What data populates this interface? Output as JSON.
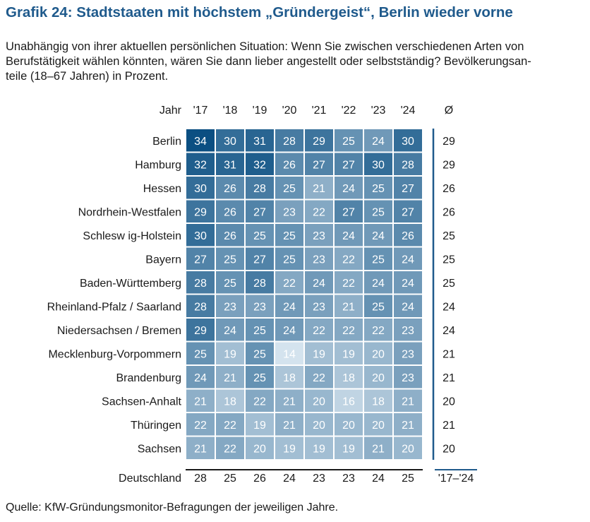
{
  "title": "Grafik 24: Stadtstaaten mit höchstem „Gründergeist“, Berlin wieder vorne",
  "subtitle_lines": [
    "Unabhängig von ihrer aktuellen persönlichen Situation: Wenn Sie zwischen verschiedenen Arten von",
    "Berufstätigkeit wählen könnten, wären Sie dann lieber angestellt oder selbstständig? Bevölkerungsan-",
    "teile (18–67 Jahren) in Prozent."
  ],
  "source": "Quelle: KfW-Gründungsmonitor-Befragungen der jeweiligen Jahre.",
  "colors": {
    "title": "#1f5a8c",
    "cell_high": "#0b4f82",
    "cell_low": "#d4e3ee",
    "divider": "#1f5a8c",
    "grid": "#ffffff"
  },
  "chart_data": {
    "type": "heatmap",
    "row_header": "Jahr",
    "columns": [
      "'17",
      "'18",
      "'19",
      "'20",
      "'21",
      "'22",
      "'23",
      "'24"
    ],
    "avg_header": "Ø",
    "rows": [
      {
        "label": "Berlin",
        "values": [
          34,
          30,
          31,
          28,
          29,
          25,
          24,
          30
        ],
        "avg": 29
      },
      {
        "label": "Hamburg",
        "values": [
          32,
          31,
          32,
          26,
          27,
          27,
          30,
          28
        ],
        "avg": 29
      },
      {
        "label": "Hessen",
        "values": [
          30,
          26,
          28,
          25,
          21,
          24,
          25,
          27
        ],
        "avg": 26
      },
      {
        "label": "Nordrhein-Westfalen",
        "values": [
          29,
          26,
          27,
          23,
          22,
          27,
          25,
          27
        ],
        "avg": 26
      },
      {
        "label": "Schlesw ig-Holstein",
        "values": [
          30,
          26,
          25,
          25,
          23,
          24,
          24,
          26
        ],
        "avg": 25
      },
      {
        "label": "Bayern",
        "values": [
          27,
          25,
          27,
          25,
          23,
          22,
          25,
          24
        ],
        "avg": 25
      },
      {
        "label": "Baden-Württemberg",
        "values": [
          28,
          25,
          28,
          22,
          24,
          22,
          24,
          24
        ],
        "avg": 25
      },
      {
        "label": "Rheinland-Pfalz / Saarland",
        "values": [
          28,
          23,
          23,
          24,
          23,
          21,
          25,
          24
        ],
        "avg": 24
      },
      {
        "label": "Niedersachsen / Bremen",
        "values": [
          29,
          24,
          25,
          24,
          22,
          22,
          22,
          23
        ],
        "avg": 24
      },
      {
        "label": "Mecklenburg-Vorpommern",
        "values": [
          25,
          19,
          25,
          14,
          19,
          19,
          20,
          23
        ],
        "avg": 21
      },
      {
        "label": "Brandenburg",
        "values": [
          24,
          21,
          25,
          18,
          22,
          18,
          20,
          23
        ],
        "avg": 21
      },
      {
        "label": "Sachsen-Anhalt",
        "values": [
          21,
          18,
          22,
          21,
          20,
          16,
          18,
          21
        ],
        "avg": 20
      },
      {
        "label": "Thüringen",
        "values": [
          22,
          22,
          19,
          21,
          20,
          20,
          20,
          21
        ],
        "avg": 21
      },
      {
        "label": "Sachsen",
        "values": [
          21,
          22,
          20,
          19,
          19,
          19,
          21,
          20
        ],
        "avg": 20
      }
    ],
    "total_row": {
      "label": "Deutschland",
      "values": [
        28,
        25,
        26,
        24,
        23,
        23,
        24,
        25
      ],
      "avg_label": "'17–'24"
    },
    "color_scale": [
      14,
      34
    ]
  }
}
